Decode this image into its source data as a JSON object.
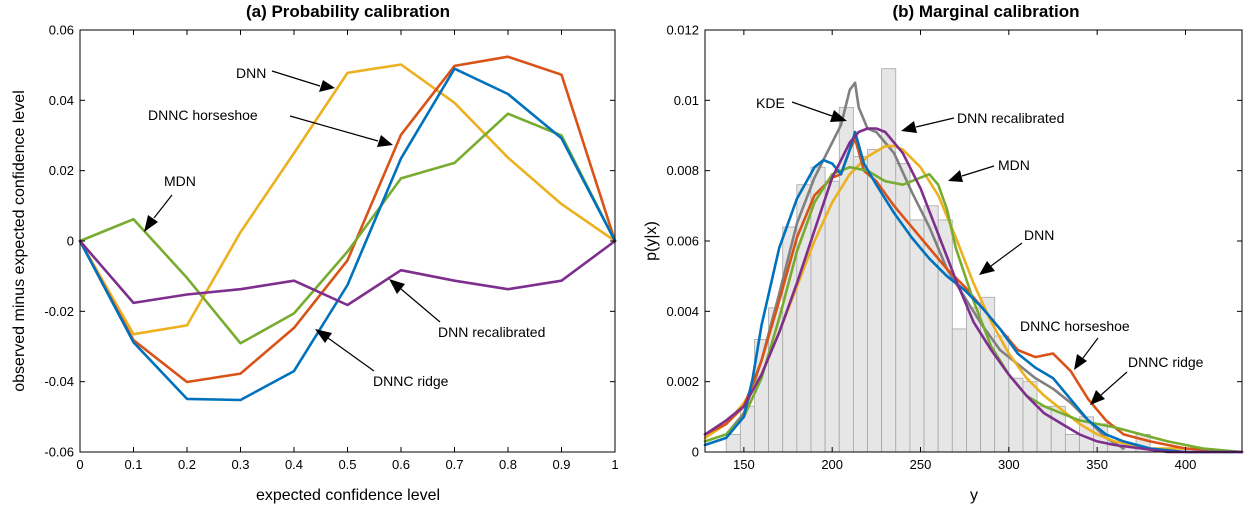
{
  "chart_data": [
    {
      "type": "line",
      "title": "(a) Probability calibration",
      "xlabel": "expected confidence level",
      "ylabel": "observed minus expected confidence level",
      "xlim": [
        0,
        1
      ],
      "ylim": [
        -0.06,
        0.06
      ],
      "xticks": [
        0,
        0.1,
        0.2,
        0.3,
        0.4,
        0.5,
        0.6,
        0.7,
        0.8,
        0.9,
        1
      ],
      "xtick_labels": [
        "0",
        "0.1",
        "0.2",
        "0.3",
        "0.4",
        "0.5",
        "0.6",
        "0.7",
        "0.8",
        "0.9",
        "1"
      ],
      "yticks": [
        -0.06,
        -0.04,
        -0.02,
        0,
        0.02,
        0.04,
        0.06
      ],
      "ytick_labels": [
        "-0.06",
        "-0.04",
        "-0.02",
        "0",
        "0.02",
        "0.04",
        "0.06"
      ],
      "grid": false,
      "x": [
        0,
        0.1,
        0.2,
        0.3,
        0.4,
        0.5,
        0.6,
        0.7,
        0.8,
        0.9,
        1
      ],
      "series": [
        {
          "name": "DNN",
          "color": "#EDB120",
          "values": [
            0,
            -0.0265,
            -0.024,
            0.0025,
            0.025,
            0.0478,
            0.0502,
            0.0393,
            0.0237,
            0.0105,
            0
          ]
        },
        {
          "name": "DNNC horseshoe",
          "color": "#D95319",
          "values": [
            0,
            -0.0282,
            -0.0401,
            -0.0377,
            -0.0247,
            -0.0055,
            0.0302,
            0.0498,
            0.0524,
            0.0473,
            0
          ]
        },
        {
          "name": "MDN",
          "color": "#77AC30",
          "values": [
            0,
            0.0062,
            -0.0105,
            -0.0291,
            -0.0206,
            -0.003,
            0.0178,
            0.0222,
            0.0362,
            0.03,
            0
          ]
        },
        {
          "name": "DNNC ridge",
          "color": "#0072BD",
          "values": [
            0,
            -0.0288,
            -0.0449,
            -0.0452,
            -0.037,
            -0.0125,
            0.0235,
            0.049,
            0.0418,
            0.0292,
            0
          ]
        },
        {
          "name": "DNN recalibrated",
          "color": "#7E2F8E",
          "values": [
            0,
            -0.0176,
            -0.0152,
            -0.0137,
            -0.0113,
            -0.0182,
            -0.0083,
            -0.0113,
            -0.0137,
            -0.0113,
            0
          ]
        }
      ],
      "annotations": [
        "DNN",
        "DNNC horseshoe",
        "MDN",
        "DNN recalibrated",
        "DNNC ridge"
      ]
    },
    {
      "type": "line",
      "title": "(b) Marginal calibration",
      "xlabel": "y",
      "ylabel": "p(y|x)",
      "xlim": [
        128,
        432
      ],
      "ylim": [
        0,
        0.012
      ],
      "xticks": [
        150,
        200,
        250,
        300,
        350,
        400
      ],
      "xtick_labels": [
        "150",
        "200",
        "250",
        "300",
        "350",
        "400"
      ],
      "yticks": [
        0,
        0.002,
        0.004,
        0.006,
        0.008,
        0.01,
        0.012
      ],
      "ytick_labels": [
        "0",
        "0.002",
        "0.004",
        "0.006",
        "0.008",
        "0.01",
        "0.012"
      ],
      "grid": false,
      "histogram": {
        "bin_width": 8,
        "bins": [
          {
            "x0": 140,
            "h": 0.0005
          },
          {
            "x0": 148,
            "h": 0.0013
          },
          {
            "x0": 156,
            "h": 0.0032
          },
          {
            "x0": 164,
            "h": 0.0041
          },
          {
            "x0": 172,
            "h": 0.0064
          },
          {
            "x0": 180,
            "h": 0.0076
          },
          {
            "x0": 188,
            "h": 0.0081
          },
          {
            "x0": 196,
            "h": 0.0077
          },
          {
            "x0": 204,
            "h": 0.0098
          },
          {
            "x0": 212,
            "h": 0.0084
          },
          {
            "x0": 220,
            "h": 0.0086
          },
          {
            "x0": 228,
            "h": 0.0109
          },
          {
            "x0": 236,
            "h": 0.0082
          },
          {
            "x0": 244,
            "h": 0.0066
          },
          {
            "x0": 252,
            "h": 0.007
          },
          {
            "x0": 260,
            "h": 0.0066
          },
          {
            "x0": 268,
            "h": 0.0035
          },
          {
            "x0": 276,
            "h": 0.0041
          },
          {
            "x0": 284,
            "h": 0.0044
          },
          {
            "x0": 292,
            "h": 0.0033
          },
          {
            "x0": 300,
            "h": 0.0021
          },
          {
            "x0": 308,
            "h": 0.002
          },
          {
            "x0": 316,
            "h": 0.0013
          },
          {
            "x0": 324,
            "h": 0.0013
          },
          {
            "x0": 332,
            "h": 0.0005
          },
          {
            "x0": 340,
            "h": 0.001
          },
          {
            "x0": 348,
            "h": 0.0008
          },
          {
            "x0": 356,
            "h": 0.0002
          },
          {
            "x0": 364,
            "h": 0.0002
          },
          {
            "x0": 372,
            "h": 0.0005
          }
        ]
      },
      "series": [
        {
          "name": "DNN",
          "color": "#EDB120",
          "x": [
            128,
            140,
            150,
            160,
            170,
            180,
            190,
            200,
            210,
            220,
            230,
            235,
            240,
            250,
            260,
            270,
            280,
            290,
            300,
            310,
            320,
            330,
            340,
            350,
            360,
            370,
            380,
            400,
            432
          ],
          "values": [
            0.0004,
            0.0008,
            0.0014,
            0.0022,
            0.0034,
            0.0047,
            0.006,
            0.0071,
            0.0079,
            0.0084,
            0.0087,
            0.0087,
            0.0086,
            0.0081,
            0.0073,
            0.0061,
            0.0048,
            0.0037,
            0.0028,
            0.0021,
            0.0016,
            0.0012,
            0.0008,
            0.0005,
            0.0003,
            0.0002,
            0.0001,
            0.0001,
            0.0
          ]
        },
        {
          "name": "DNNC horseshoe",
          "color": "#D95319",
          "x": [
            128,
            140,
            150,
            160,
            170,
            180,
            190,
            200,
            205,
            210,
            213,
            218,
            225,
            235,
            245,
            255,
            265,
            275,
            285,
            295,
            305,
            315,
            325,
            335,
            345,
            355,
            365,
            380,
            400,
            432
          ],
          "values": [
            0.0005,
            0.0008,
            0.0013,
            0.0026,
            0.0043,
            0.0061,
            0.0073,
            0.0078,
            0.0079,
            0.0086,
            0.0089,
            0.008,
            0.0077,
            0.007,
            0.0064,
            0.0058,
            0.0052,
            0.0047,
            0.0041,
            0.0035,
            0.0029,
            0.0027,
            0.0028,
            0.0023,
            0.0015,
            0.0009,
            0.0005,
            0.0003,
            0.0001,
            0.0
          ]
        },
        {
          "name": "MDN",
          "color": "#77AC30",
          "x": [
            128,
            140,
            150,
            160,
            170,
            180,
            190,
            200,
            210,
            220,
            230,
            240,
            250,
            255,
            260,
            265,
            270,
            280,
            290,
            300,
            310,
            320,
            330,
            340,
            350,
            360,
            375,
            390,
            410,
            432
          ],
          "values": [
            0.0003,
            0.0005,
            0.001,
            0.0021,
            0.0038,
            0.0057,
            0.0071,
            0.0079,
            0.0081,
            0.008,
            0.0077,
            0.0076,
            0.0078,
            0.0079,
            0.0076,
            0.0069,
            0.0058,
            0.0043,
            0.003,
            0.0022,
            0.0016,
            0.0013,
            0.0011,
            0.0009,
            0.0008,
            0.0007,
            0.0005,
            0.0003,
            0.0001,
            0.0
          ]
        },
        {
          "name": "DNNC ridge",
          "color": "#0072BD",
          "x": [
            128,
            140,
            150,
            155,
            160,
            170,
            180,
            190,
            195,
            200,
            205,
            210,
            213,
            218,
            225,
            235,
            245,
            255,
            265,
            275,
            285,
            295,
            305,
            315,
            325,
            335,
            345,
            355,
            365,
            380,
            400,
            432
          ],
          "values": [
            0.0002,
            0.0004,
            0.001,
            0.0021,
            0.0036,
            0.0058,
            0.0072,
            0.0081,
            0.0083,
            0.0082,
            0.0079,
            0.0086,
            0.0091,
            0.0082,
            0.0076,
            0.0068,
            0.0061,
            0.0055,
            0.005,
            0.0046,
            0.0041,
            0.0035,
            0.0028,
            0.0024,
            0.0021,
            0.0015,
            0.0009,
            0.0005,
            0.0003,
            0.0001,
            0.0,
            0.0
          ]
        },
        {
          "name": "DNN recalibrated",
          "color": "#7E2F8E",
          "x": [
            128,
            140,
            150,
            160,
            170,
            180,
            190,
            200,
            210,
            215,
            220,
            225,
            230,
            240,
            250,
            260,
            270,
            280,
            290,
            300,
            310,
            320,
            330,
            340,
            350,
            360,
            375,
            390,
            410,
            432
          ],
          "values": [
            0.0005,
            0.0009,
            0.0013,
            0.0022,
            0.0034,
            0.0048,
            0.0063,
            0.0078,
            0.0088,
            0.0091,
            0.0092,
            0.0092,
            0.0091,
            0.0085,
            0.0075,
            0.0062,
            0.0049,
            0.0037,
            0.0029,
            0.0022,
            0.0016,
            0.0011,
            0.0008,
            0.0005,
            0.0003,
            0.0002,
            0.0001,
            0.0,
            0.0,
            0.0
          ]
        },
        {
          "name": "KDE",
          "color": "#808080",
          "x": [
            140,
            150,
            160,
            170,
            180,
            190,
            200,
            205,
            210,
            213,
            215,
            220,
            225,
            235,
            245,
            255,
            265,
            275,
            285,
            295,
            305,
            315,
            325,
            335,
            345,
            355,
            365
          ],
          "values": [
            0.0005,
            0.0011,
            0.0026,
            0.0045,
            0.0065,
            0.0078,
            0.0088,
            0.0093,
            0.0103,
            0.0105,
            0.0098,
            0.0092,
            0.0091,
            0.0085,
            0.0074,
            0.0064,
            0.0052,
            0.0044,
            0.0036,
            0.0029,
            0.0025,
            0.0021,
            0.0018,
            0.0014,
            0.0009,
            0.0004,
            0.0001
          ]
        }
      ],
      "annotations": [
        "KDE",
        "DNN recalibrated",
        "MDN",
        "DNN",
        "DNNC horseshoe",
        "DNNC ridge"
      ]
    }
  ]
}
